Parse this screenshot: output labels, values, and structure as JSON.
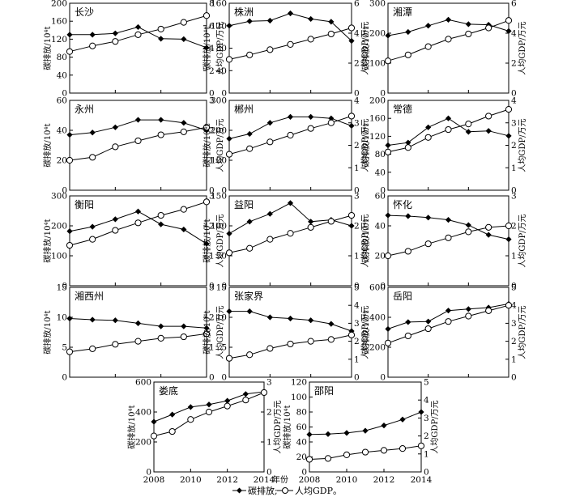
{
  "figure": {
    "xlabel": "年份",
    "legend": {
      "carbon": "碳排放;",
      "gdp": "人均GDP。"
    }
  },
  "chart_data": [
    {
      "type": "line",
      "title": "长沙",
      "ylabel_left": "碳排放/10⁴t",
      "ylabel_right": "人均GDP/万元",
      "x": [
        2008,
        2009,
        2010,
        2011,
        2012,
        2013,
        2014
      ],
      "ylim_left": [
        0,
        200
      ],
      "ticks_left": [
        0,
        40,
        80,
        120,
        160,
        200
      ],
      "ylim_right": [
        0,
        8
      ],
      "ticks_right": [
        0,
        2,
        4,
        6,
        8
      ],
      "series": [
        {
          "name": "碳排放",
          "axis": "left",
          "values": [
            130,
            130,
            133,
            147,
            121,
            120,
            101
          ]
        },
        {
          "name": "人均GDP",
          "axis": "right",
          "values": [
            3.7,
            4.2,
            4.6,
            5.2,
            5.7,
            6.3,
            6.9
          ]
        }
      ]
    },
    {
      "type": "line",
      "title": "株洲",
      "ylabel_left": "碳排放/10⁴t",
      "ylabel_right": "人均GDP/万元",
      "x": [
        2008,
        2009,
        2010,
        2011,
        2012,
        2013,
        2014
      ],
      "ylim_left": [
        0,
        160
      ],
      "ticks_left": [
        0,
        40,
        80,
        120,
        160
      ],
      "ylim_right": [
        0,
        6
      ],
      "ticks_right": [
        0,
        2,
        4,
        6
      ],
      "series": [
        {
          "name": "碳排放",
          "axis": "left",
          "values": [
            120,
            128,
            129,
            142,
            132,
            127,
            93
          ]
        },
        {
          "name": "人均GDP",
          "axis": "right",
          "values": [
            2.25,
            2.55,
            2.9,
            3.25,
            3.6,
            3.95,
            4.35
          ]
        }
      ]
    },
    {
      "type": "line",
      "title": "湘潭",
      "ylabel_left": "碳排放/10⁴t",
      "ylabel_right": "人均GDP/万元",
      "x": [
        2008,
        2009,
        2010,
        2011,
        2012,
        2013,
        2014
      ],
      "ylim_left": [
        0,
        300
      ],
      "ticks_left": [
        0,
        100,
        200,
        300
      ],
      "ylim_right": [
        0,
        6
      ],
      "ticks_right": [
        0,
        2,
        4,
        6
      ],
      "series": [
        {
          "name": "碳排放",
          "axis": "left",
          "values": [
            192,
            204,
            225,
            245,
            230,
            228,
            207
          ]
        },
        {
          "name": "人均GDP",
          "axis": "right",
          "values": [
            2.15,
            2.55,
            3.1,
            3.6,
            3.95,
            4.35,
            4.85
          ]
        }
      ]
    },
    {
      "type": "line",
      "title": "永州",
      "ylabel_left": "碳排放/10⁴t",
      "ylabel_right": "人均GDP/万元",
      "x": [
        2008,
        2009,
        2010,
        2011,
        2012,
        2013,
        2014
      ],
      "ylim_left": [
        0,
        60
      ],
      "ticks_left": [
        0,
        20,
        40,
        60
      ],
      "ylim_right": [
        0,
        3
      ],
      "ticks_right": [
        0,
        1,
        2,
        3
      ],
      "series": [
        {
          "name": "碳排放",
          "axis": "left",
          "values": [
            37,
            38.5,
            42,
            47,
            47,
            45,
            40
          ]
        },
        {
          "name": "人均GDP",
          "axis": "right",
          "values": [
            1,
            1.1,
            1.45,
            1.65,
            1.85,
            1.95,
            2.1
          ]
        }
      ]
    },
    {
      "type": "line",
      "title": "郴州",
      "ylabel_left": "碳排放/10⁴t",
      "ylabel_right": "人均GDP/万元",
      "x": [
        2008,
        2009,
        2010,
        2011,
        2012,
        2013,
        2014
      ],
      "ylim_left": [
        0,
        300
      ],
      "ticks_left": [
        0,
        100,
        200,
        300
      ],
      "ylim_right": [
        0,
        4
      ],
      "ticks_right": [
        0,
        1,
        2,
        3,
        4
      ],
      "series": [
        {
          "name": "碳排放",
          "axis": "left",
          "values": [
            172,
            188,
            225,
            245,
            245,
            240,
            215
          ]
        },
        {
          "name": "人均GDP",
          "axis": "right",
          "values": [
            1.6,
            1.85,
            2.15,
            2.45,
            2.75,
            3.0,
            3.3
          ]
        }
      ]
    },
    {
      "type": "line",
      "title": "常德",
      "ylabel_left": "碳排放/10⁴t",
      "ylabel_right": "人均GDP/万元",
      "x": [
        2008,
        2009,
        2010,
        2011,
        2012,
        2013,
        2014
      ],
      "ylim_left": [
        0,
        200
      ],
      "ticks_left": [
        0,
        40,
        80,
        120,
        160,
        200
      ],
      "ylim_right": [
        0,
        4
      ],
      "ticks_right": [
        0,
        1,
        2,
        3,
        4
      ],
      "series": [
        {
          "name": "碳排放",
          "axis": "left",
          "values": [
            100,
            106,
            140,
            160,
            130,
            132,
            121
          ]
        },
        {
          "name": "人均GDP",
          "axis": "right",
          "values": [
            1.7,
            1.9,
            2.35,
            2.7,
            2.95,
            3.3,
            3.6
          ]
        }
      ]
    },
    {
      "type": "line",
      "title": "衡阳",
      "ylabel_left": "碳排放/10⁴t",
      "ylabel_right": "人均GDP/万元",
      "x": [
        2008,
        2009,
        2010,
        2011,
        2012,
        2013,
        2014
      ],
      "ylim_left": [
        0,
        300
      ],
      "ticks_left": [
        0,
        100,
        200,
        300
      ],
      "ylim_right": [
        0,
        3
      ],
      "ticks_right": [
        0,
        1,
        2,
        3
      ],
      "series": [
        {
          "name": "碳排放",
          "axis": "left",
          "values": [
            182,
            197,
            222,
            248,
            205,
            188,
            140
          ]
        },
        {
          "name": "人均GDP",
          "axis": "right",
          "values": [
            1.35,
            1.55,
            1.85,
            2.1,
            2.35,
            2.55,
            2.8
          ]
        }
      ]
    },
    {
      "type": "line",
      "title": "益阳",
      "ylabel_left": "碳排放/10⁴t",
      "ylabel_right": "人均GDP/万元",
      "x": [
        2008,
        2009,
        2010,
        2011,
        2012,
        2013,
        2014
      ],
      "ylim_left": [
        0,
        150
      ],
      "ticks_left": [
        0,
        50,
        100,
        150
      ],
      "ylim_right": [
        0,
        3
      ],
      "ticks_right": [
        0,
        1,
        2,
        3
      ],
      "series": [
        {
          "name": "碳排放",
          "axis": "left",
          "values": [
            87,
            107,
            120,
            138,
            107,
            110,
            100
          ]
        },
        {
          "name": "人均GDP",
          "axis": "right",
          "values": [
            1.1,
            1.25,
            1.55,
            1.75,
            1.95,
            2.15,
            2.35
          ]
        }
      ]
    },
    {
      "type": "line",
      "title": "怀化",
      "ylabel_left": "碳排放/10⁴t",
      "ylabel_right": "人均GDP/万元",
      "x": [
        2008,
        2009,
        2010,
        2011,
        2012,
        2013,
        2014
      ],
      "ylim_left": [
        0,
        60
      ],
      "ticks_left": [
        0,
        20,
        40,
        60
      ],
      "ylim_right": [
        0,
        3
      ],
      "ticks_right": [
        0,
        1,
        2,
        3
      ],
      "series": [
        {
          "name": "碳排放",
          "axis": "left",
          "values": [
            47,
            46.5,
            45.5,
            44,
            40.5,
            34,
            31
          ]
        },
        {
          "name": "人均GDP",
          "axis": "right",
          "values": [
            1,
            1.15,
            1.4,
            1.6,
            1.8,
            1.95,
            2.0
          ]
        }
      ]
    },
    {
      "type": "line",
      "title": "湘西州",
      "ylabel_left": "碳排放/10⁴t",
      "ylabel_right": "人均GDP/万元",
      "x": [
        2008,
        2009,
        2010,
        2011,
        2012,
        2013,
        2014
      ],
      "ylim_left": [
        0,
        15
      ],
      "ticks_left": [
        0,
        5,
        10,
        15
      ],
      "ylim_right": [
        0,
        3
      ],
      "ticks_right": [
        0,
        1,
        2,
        3
      ],
      "series": [
        {
          "name": "碳排放",
          "axis": "left",
          "values": [
            9.8,
            9.6,
            9.5,
            9.0,
            8.5,
            8.5,
            8.2
          ]
        },
        {
          "name": "人均GDP",
          "axis": "right",
          "values": [
            0.85,
            0.95,
            1.1,
            1.2,
            1.3,
            1.35,
            1.45
          ]
        }
      ]
    },
    {
      "type": "line",
      "title": "张家界",
      "ylabel_left": "碳排放/10⁴t",
      "ylabel_right": "人均GDP/万元",
      "x": [
        2008,
        2009,
        2010,
        2011,
        2012,
        2013,
        2014
      ],
      "ylim_left": [
        0,
        15
      ],
      "ticks_left": [
        0,
        5,
        10,
        15
      ],
      "ylim_right": [
        0,
        5
      ],
      "ticks_right": [
        0,
        1,
        2,
        3,
        4,
        5
      ],
      "series": [
        {
          "name": "碳排放",
          "axis": "left",
          "values": [
            11,
            11,
            10,
            9.8,
            9.5,
            8.9,
            7.7
          ]
        },
        {
          "name": "人均GDP",
          "axis": "right",
          "values": [
            1.05,
            1.25,
            1.6,
            1.85,
            2.0,
            2.1,
            2.35
          ]
        }
      ]
    },
    {
      "type": "line",
      "title": "岳阳",
      "ylabel_left": "碳排放/10⁴t",
      "ylabel_right": "人均GDP/万元",
      "x": [
        2008,
        2009,
        2010,
        2011,
        2012,
        2013,
        2014
      ],
      "ylim_left": [
        0,
        600
      ],
      "ticks_left": [
        0,
        200,
        400,
        600
      ],
      "ylim_right": [
        0,
        5
      ],
      "ticks_right": [
        0,
        1,
        2,
        3,
        4,
        5
      ],
      "series": [
        {
          "name": "碳排放",
          "axis": "left",
          "values": [
            322,
            368,
            372,
            445,
            455,
            465,
            490
          ]
        },
        {
          "name": "人均GDP",
          "axis": "right",
          "values": [
            1.9,
            2.3,
            2.7,
            3.1,
            3.4,
            3.7,
            4.0
          ]
        }
      ]
    },
    {
      "type": "line",
      "title": "娄底",
      "ylabel_left": "碳排放/10⁴t",
      "ylabel_right": "人均GDP/万元",
      "x": [
        2008,
        2009,
        2010,
        2011,
        2012,
        2013,
        2014
      ],
      "ylim_left": [
        0,
        600
      ],
      "ticks_left": [
        0,
        200,
        400,
        600
      ],
      "ylim_right": [
        0,
        3
      ],
      "ticks_right": [
        0,
        1,
        2,
        3
      ],
      "series": [
        {
          "name": "碳排放",
          "axis": "left",
          "values": [
            335,
            383,
            433,
            450,
            475,
            520,
            535
          ]
        },
        {
          "name": "人均GDP",
          "axis": "right",
          "values": [
            1.2,
            1.35,
            1.75,
            2.0,
            2.2,
            2.4,
            2.65
          ]
        }
      ]
    },
    {
      "type": "line",
      "title": "邵阳",
      "ylabel_left": "碳排放/10⁴t",
      "ylabel_right": "人均GDP/万元",
      "x": [
        2008,
        2009,
        2010,
        2011,
        2012,
        2013,
        2014
      ],
      "ylim_left": [
        0,
        120
      ],
      "ticks_left": [
        0,
        20,
        40,
        60,
        80,
        100,
        120
      ],
      "ylim_right": [
        0,
        5
      ],
      "ticks_right": [
        0,
        1,
        2,
        3,
        4,
        5
      ],
      "series": [
        {
          "name": "碳排放",
          "axis": "left",
          "values": [
            50,
            50.5,
            52,
            55,
            62,
            70,
            80
          ]
        },
        {
          "name": "人均GDP",
          "axis": "right",
          "values": [
            0.7,
            0.75,
            0.95,
            1.1,
            1.2,
            1.3,
            1.45
          ]
        }
      ]
    }
  ],
  "xaxis": {
    "min": 2008,
    "max": 2014,
    "ticks": [
      2008,
      2010,
      2012,
      2014
    ]
  }
}
